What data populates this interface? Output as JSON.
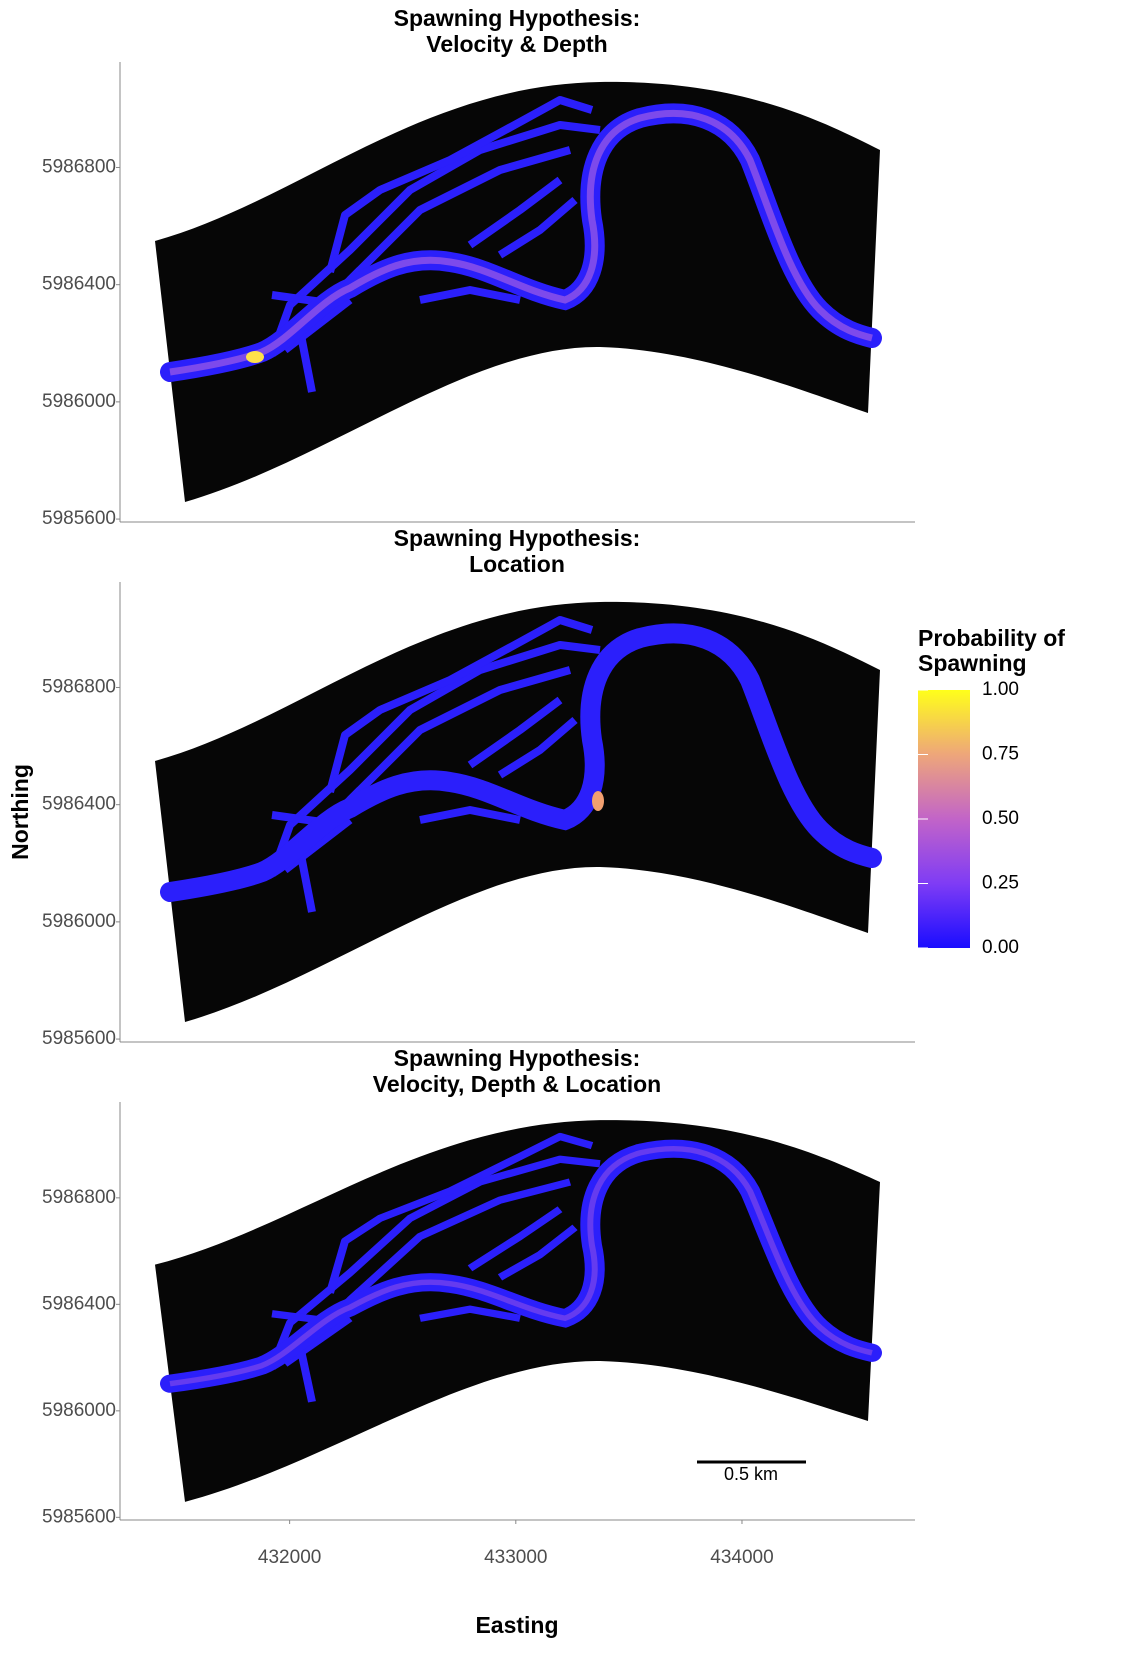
{
  "chart_data": [
    {
      "type": "map",
      "title": [
        "Spawning Hypothesis:",
        "Velocity & Depth"
      ],
      "xlim": [
        431250,
        434765
      ],
      "ylim": [
        5985590,
        5987160
      ],
      "yticks": [
        5985600,
        5986000,
        5986400,
        5986800
      ]
    },
    {
      "type": "map",
      "title": [
        "Spawning Hypothesis:",
        "Location"
      ],
      "xlim": [
        431250,
        434765
      ],
      "ylim": [
        5985590,
        5987160
      ],
      "yticks": [
        5985600,
        5986000,
        5986400,
        5986800
      ],
      "ylabel": "Northing",
      "colorbar": {
        "title": [
          "Probability of",
          "Spawning"
        ],
        "lim": [
          0,
          1
        ],
        "ticks": [
          {
            "value": 0,
            "label": "0.00"
          },
          {
            "value": 0.25,
            "label": "0.25"
          },
          {
            "value": 0.5,
            "label": "0.50"
          },
          {
            "value": 0.75,
            "label": "0.75"
          },
          {
            "value": 1,
            "label": "1.00"
          }
        ],
        "colors": [
          "#1a0dff",
          "#7f3cf5",
          "#c264c8",
          "#eea67a",
          "#ffff1a"
        ]
      }
    },
    {
      "type": "map",
      "title": [
        "Spawning Hypothesis:",
        "Velocity, Depth & Location"
      ],
      "xlim": [
        431250,
        434765
      ],
      "ylim": [
        5985590,
        5987160
      ],
      "xticks": [
        432000,
        433000,
        434000
      ],
      "yticks": [
        5985600,
        5986000,
        5986400,
        5986800
      ],
      "xlabel": "Easting",
      "scale_bar": "0.5 km"
    }
  ]
}
